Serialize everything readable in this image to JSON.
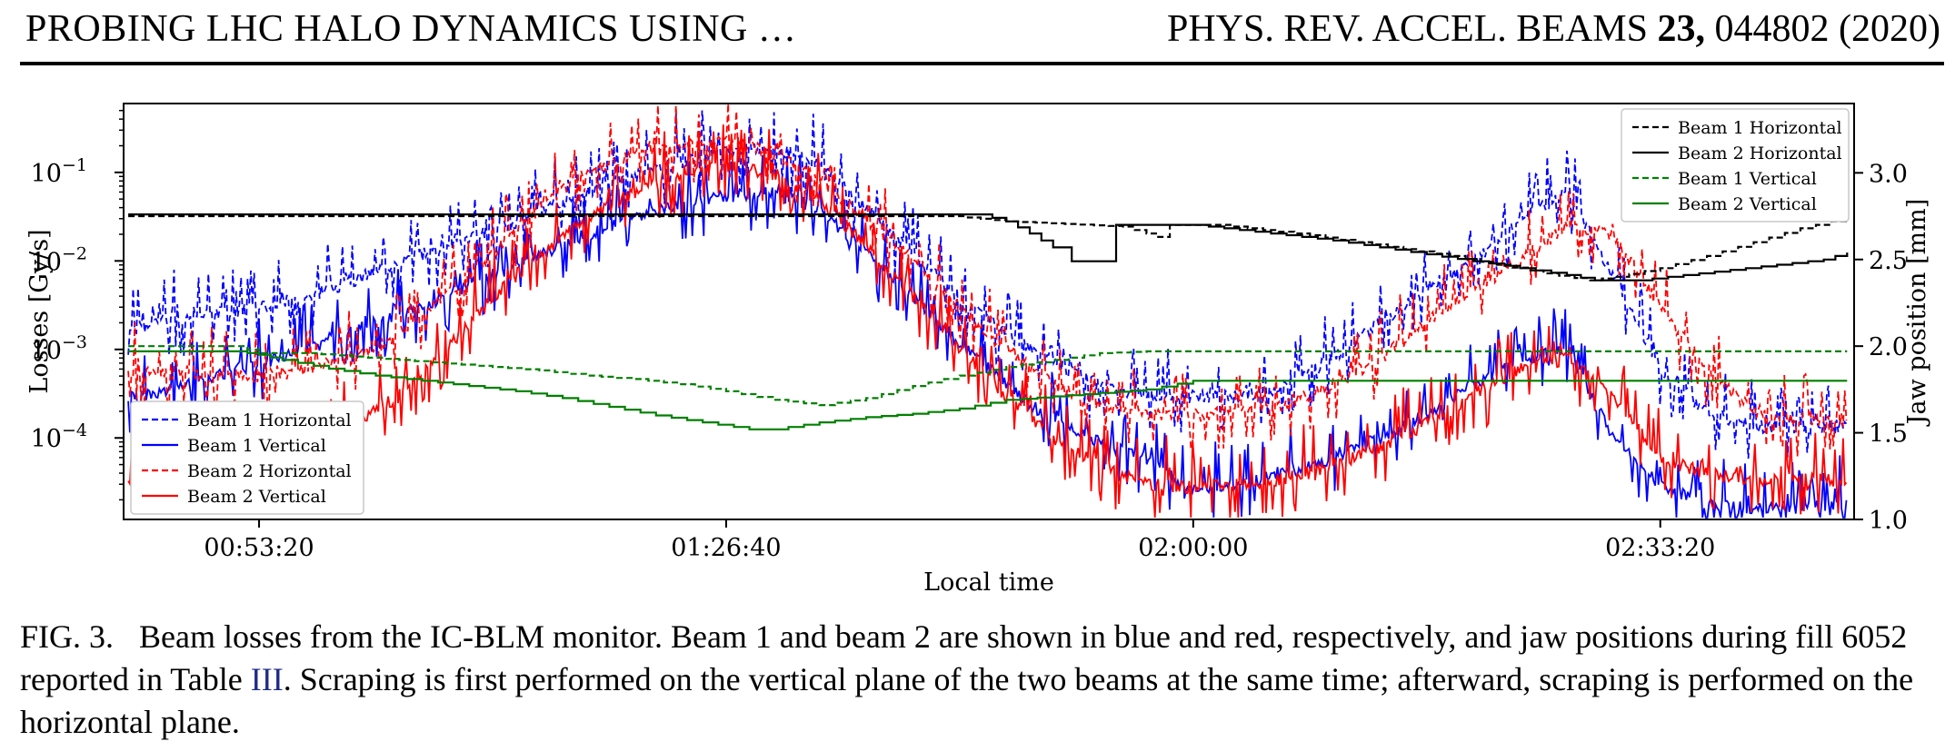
{
  "header": {
    "running_title": "PROBING LHC HALO DYNAMICS USING …",
    "journal": "PHYS. REV. ACCEL. BEAMS",
    "volume": "23,",
    "article": "044802 (2020)"
  },
  "caption": {
    "label": "FIG. 3.",
    "text_1": "Beam losses from the IC-BLM monitor. Beam 1 and beam 2 are shown in blue and red, respectively, and jaw positions during fill 6052 reported in Table ",
    "ref": "III",
    "text_2": ". Scraping is first performed on the vertical plane of the two beams at the same time; afterward, scraping is performed on the horizontal plane."
  },
  "chart_data": {
    "type": "line",
    "title": "",
    "xlabel": "Local time",
    "ylabel_left": "Losses [Gy/s]",
    "ylabel_right": "Jaw position [mm]",
    "x_unit": "seconds since 00:00:00 local time",
    "xlim": [
      2620,
      10030
    ],
    "x_ticks": [
      {
        "value": 3200,
        "label": "00:53:20"
      },
      {
        "value": 5200,
        "label": "01:26:40"
      },
      {
        "value": 7200,
        "label": "02:00:00"
      },
      {
        "value": 9200,
        "label": "02:33:20"
      }
    ],
    "y_left_scale": "log",
    "y_left_lim": [
      1.2e-05,
      0.6
    ],
    "y_left_ticks": [
      {
        "value": 0.0001,
        "label": "10−4"
      },
      {
        "value": 0.001,
        "label": "10−3"
      },
      {
        "value": 0.01,
        "label": "10−2"
      },
      {
        "value": 0.1,
        "label": "10−1"
      }
    ],
    "y_right_lim": [
      1.0,
      3.4
    ],
    "y_right_ticks": [
      {
        "value": 1.0,
        "label": "1.0"
      },
      {
        "value": 1.5,
        "label": "1.5"
      },
      {
        "value": 2.0,
        "label": "2.0"
      },
      {
        "value": 2.5,
        "label": "2.5"
      },
      {
        "value": 3.0,
        "label": "3.0"
      }
    ],
    "grid": false,
    "legend_losses_position": "lower-left",
    "legend_jaws_position": "upper-right",
    "loss_series": [
      {
        "name": "Beam 1 Horizontal",
        "color": "#0000ff",
        "dash": "dashed",
        "x": [
          2640,
          2800,
          3000,
          3200,
          3400,
          3600,
          3800,
          4000,
          4200,
          4400,
          4600,
          4800,
          5000,
          5200,
          5400,
          5600,
          5800,
          6000,
          6200,
          6400,
          6600,
          6800,
          7000,
          7200,
          7400,
          7600,
          7800,
          8000,
          8200,
          8400,
          8600,
          8800,
          9000,
          9200,
          9400,
          9600,
          9800,
          10000
        ],
        "y": [
          0.0017,
          0.0021,
          0.0025,
          0.003,
          0.004,
          0.006,
          0.01,
          0.014,
          0.022,
          0.035,
          0.06,
          0.09,
          0.13,
          0.17,
          0.2,
          0.12,
          0.04,
          0.012,
          0.004,
          0.0015,
          0.0007,
          0.0004,
          0.0003,
          0.0003,
          0.0003,
          0.0004,
          0.0008,
          0.002,
          0.005,
          0.01,
          0.03,
          0.06,
          0.007,
          0.0006,
          0.0002,
          0.00014,
          0.00013,
          0.00014
        ]
      },
      {
        "name": "Beam 1 Vertical",
        "color": "#0000ff",
        "dash": "solid",
        "x": [
          2640,
          2800,
          3000,
          3200,
          3400,
          3600,
          3800,
          4000,
          4200,
          4400,
          4600,
          4800,
          5000,
          5200,
          5400,
          5600,
          5800,
          6000,
          6200,
          6400,
          6600,
          6800,
          7000,
          7200,
          7400,
          7600,
          7800,
          8000,
          8200,
          8400,
          8600,
          8800,
          9000,
          9200,
          9400,
          9600,
          9800,
          10000
        ],
        "y": [
          0.0003,
          0.00035,
          0.0005,
          0.0007,
          0.001,
          0.0016,
          0.0025,
          0.004,
          0.007,
          0.012,
          0.02,
          0.03,
          0.045,
          0.055,
          0.06,
          0.04,
          0.012,
          0.004,
          0.0012,
          0.0004,
          0.00015,
          9e-05,
          6e-05,
          2.5e-05,
          3e-05,
          4e-05,
          6e-05,
          0.0001,
          0.00018,
          0.0004,
          0.0008,
          0.001,
          0.0001,
          3e-05,
          1.8e-05,
          1.6e-05,
          1.7e-05,
          1.8e-05
        ]
      },
      {
        "name": "Beam 2 Horizontal",
        "color": "#ff0000",
        "dash": "dashed",
        "x": [
          2640,
          2800,
          3000,
          3200,
          3400,
          3600,
          3800,
          4000,
          4200,
          4400,
          4600,
          4800,
          5000,
          5200,
          5400,
          5600,
          5800,
          6000,
          6200,
          6400,
          6600,
          6800,
          7000,
          7200,
          7400,
          7600,
          7800,
          8000,
          8200,
          8400,
          8600,
          8800,
          9000,
          9200,
          9400,
          9600,
          9800,
          10000
        ],
        "y": [
          0.0006,
          0.00055,
          0.0005,
          0.0005,
          0.0006,
          0.0008,
          0.0015,
          0.004,
          0.012,
          0.04,
          0.1,
          0.15,
          0.2,
          0.22,
          0.18,
          0.08,
          0.03,
          0.01,
          0.003,
          0.001,
          0.0004,
          0.00025,
          0.00018,
          0.00018,
          0.0002,
          0.00025,
          0.0004,
          0.0008,
          0.002,
          0.005,
          0.01,
          0.025,
          0.02,
          0.003,
          0.0006,
          0.0002,
          0.00016,
          0.00015
        ]
      },
      {
        "name": "Beam 2 Vertical",
        "color": "#ff0000",
        "dash": "solid",
        "x": [
          2640,
          2800,
          3000,
          3200,
          3400,
          3600,
          3800,
          4000,
          4200,
          4400,
          4600,
          4800,
          5000,
          5200,
          5400,
          5600,
          5800,
          6000,
          6200,
          6400,
          6600,
          6800,
          7000,
          7200,
          7400,
          7600,
          7800,
          8000,
          8200,
          8400,
          8600,
          8800,
          9000,
          9200,
          9400,
          9600,
          9800,
          10000
        ],
        "y": [
          7e-05,
          6.8e-05,
          7e-05,
          8e-05,
          0.0001,
          0.00014,
          0.0003,
          0.001,
          0.004,
          0.012,
          0.03,
          0.06,
          0.09,
          0.12,
          0.1,
          0.05,
          0.015,
          0.004,
          0.001,
          0.0003,
          0.0001,
          5e-05,
          3e-05,
          2.8e-05,
          3e-05,
          3.5e-05,
          5e-05,
          8e-05,
          0.00015,
          0.0003,
          0.0006,
          0.0008,
          0.0003,
          6e-05,
          4e-05,
          3.5e-05,
          3.4e-05,
          3.4e-05
        ]
      }
    ],
    "jaw_series": [
      {
        "name": "Beam 1 Horizontal",
        "color": "#000000",
        "dash": "dashed",
        "x": [
          2640,
          6180,
          6400,
          6900,
          7000,
          7050,
          7100,
          7300,
          7500,
          7700,
          7900,
          8100,
          8300,
          8500,
          8700,
          8900,
          9000,
          9200,
          9400,
          9600,
          9800,
          10000
        ],
        "y": [
          2.75,
          2.75,
          2.72,
          2.69,
          2.65,
          2.63,
          2.7,
          2.7,
          2.67,
          2.64,
          2.6,
          2.56,
          2.52,
          2.47,
          2.42,
          2.38,
          2.4,
          2.45,
          2.52,
          2.6,
          2.68,
          2.74
        ]
      },
      {
        "name": "Beam 2 Horizontal",
        "color": "#000000",
        "dash": "solid",
        "x": [
          2640,
          6280,
          6400,
          6500,
          6600,
          6680,
          6860,
          6870,
          7000,
          7200,
          7400,
          7600,
          7800,
          8000,
          8200,
          8400,
          8600,
          8800,
          8920,
          9100,
          9300,
          9500,
          9700,
          9900,
          10000
        ],
        "y": [
          2.76,
          2.76,
          2.72,
          2.65,
          2.57,
          2.49,
          2.49,
          2.7,
          2.7,
          2.7,
          2.67,
          2.64,
          2.61,
          2.57,
          2.53,
          2.49,
          2.45,
          2.41,
          2.38,
          2.38,
          2.41,
          2.44,
          2.47,
          2.5,
          2.54
        ]
      },
      {
        "name": "Beam 1 Vertical",
        "color": "#008000",
        "dash": "dashed",
        "x": [
          2640,
          3100,
          3200,
          3400,
          3600,
          3800,
          4000,
          4200,
          4400,
          4600,
          4800,
          5000,
          5200,
          5400,
          5600,
          5800,
          6000,
          6200,
          6400,
          6600,
          6800,
          7000,
          7200,
          7400,
          10000
        ],
        "y": [
          2.0,
          2.0,
          1.96,
          1.96,
          1.94,
          1.92,
          1.9,
          1.88,
          1.86,
          1.83,
          1.81,
          1.78,
          1.74,
          1.69,
          1.66,
          1.7,
          1.77,
          1.83,
          1.88,
          1.92,
          1.96,
          1.97,
          1.97,
          1.97,
          1.97
        ]
      },
      {
        "name": "Beam 2 Vertical",
        "color": "#008000",
        "dash": "solid",
        "x": [
          2640,
          3100,
          3200,
          3300,
          3500,
          3700,
          3900,
          4100,
          4300,
          4500,
          4700,
          4900,
          5100,
          5300,
          5400,
          5600,
          5800,
          6000,
          6200,
          6400,
          6600,
          6800,
          7000,
          7200,
          7400,
          10000
        ],
        "y": [
          1.97,
          1.97,
          1.95,
          1.92,
          1.87,
          1.83,
          1.8,
          1.77,
          1.74,
          1.7,
          1.65,
          1.6,
          1.56,
          1.52,
          1.52,
          1.56,
          1.59,
          1.61,
          1.64,
          1.69,
          1.71,
          1.73,
          1.75,
          1.8,
          1.8,
          1.8
        ]
      }
    ]
  }
}
